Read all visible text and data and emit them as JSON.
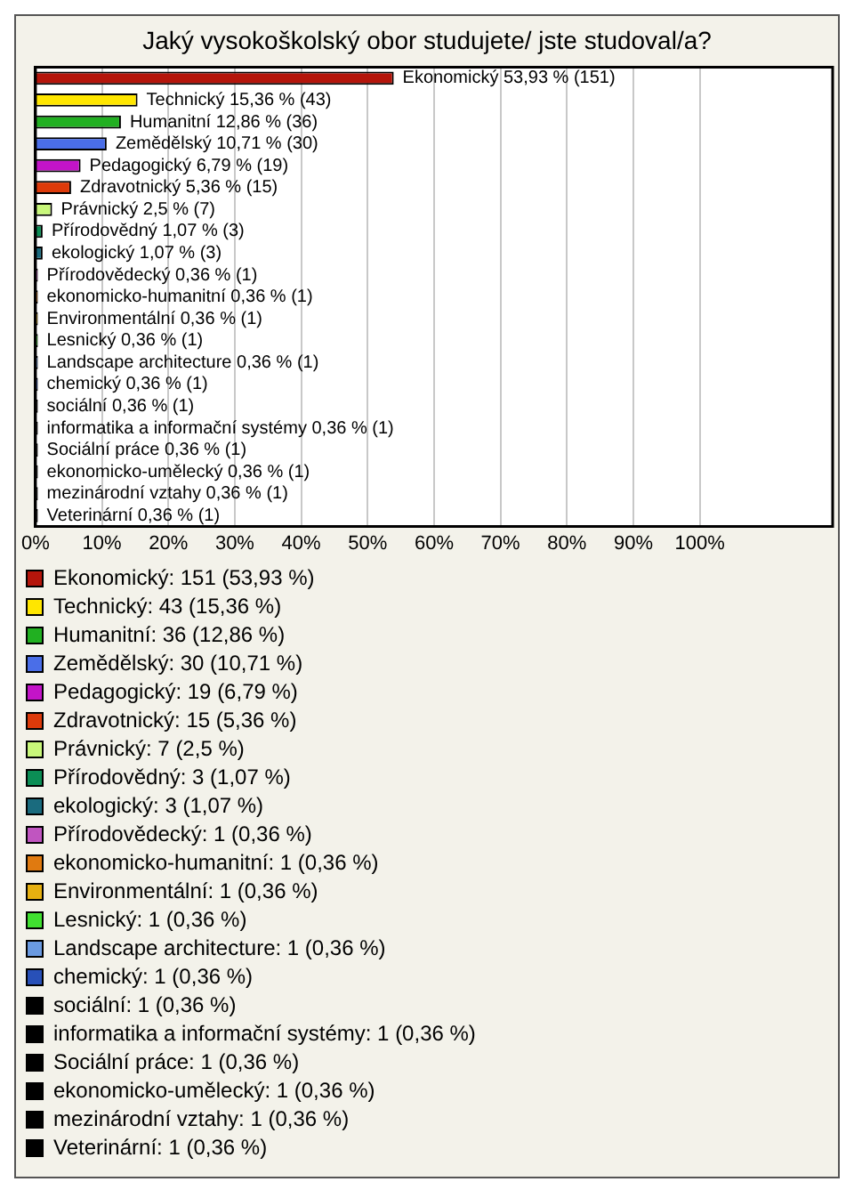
{
  "chart_data": {
    "type": "bar",
    "orientation": "horizontal",
    "stacked": true,
    "title": "Jaký vysokoškolský obor studujete/ jste studoval/a?",
    "categories": [
      null,
      null,
      null,
      null,
      null,
      null,
      null,
      null,
      null,
      null,
      null,
      null,
      null,
      null,
      null,
      null,
      null,
      null,
      null,
      null,
      null
    ],
    "series": [
      {
        "name": "Ekonomický: 151 (53,93 %)",
        "color": "#b5150b",
        "values": [
          53.93,
          null,
          null,
          null,
          null,
          null,
          null,
          null,
          null,
          null,
          null,
          null,
          null,
          null,
          null,
          null,
          null,
          null,
          null,
          null,
          null
        ],
        "value_labels": [
          "Ekonomický 53,93 % (151)",
          null,
          null,
          null,
          null,
          null,
          null,
          null,
          null,
          null,
          null,
          null,
          null,
          null,
          null,
          null,
          null,
          null,
          null,
          null,
          null
        ]
      },
      {
        "name": "Technický: 43 (15,36 %)",
        "color": "#ffe600",
        "values": [
          null,
          15.36,
          null,
          null,
          null,
          null,
          null,
          null,
          null,
          null,
          null,
          null,
          null,
          null,
          null,
          null,
          null,
          null,
          null,
          null,
          null
        ],
        "value_labels": [
          null,
          "Technický 15,36 % (43)",
          null,
          null,
          null,
          null,
          null,
          null,
          null,
          null,
          null,
          null,
          null,
          null,
          null,
          null,
          null,
          null,
          null,
          null,
          null
        ]
      },
      {
        "name": "Humanitní: 36 (12,86 %)",
        "color": "#21b021",
        "values": [
          null,
          null,
          12.86,
          null,
          null,
          null,
          null,
          null,
          null,
          null,
          null,
          null,
          null,
          null,
          null,
          null,
          null,
          null,
          null,
          null,
          null
        ],
        "value_labels": [
          null,
          null,
          "Humanitní 12,86 % (36)",
          null,
          null,
          null,
          null,
          null,
          null,
          null,
          null,
          null,
          null,
          null,
          null,
          null,
          null,
          null,
          null,
          null,
          null
        ]
      },
      {
        "name": "Zemědělský: 30 (10,71 %)",
        "color": "#4a6ee8",
        "values": [
          null,
          null,
          null,
          10.71,
          null,
          null,
          null,
          null,
          null,
          null,
          null,
          null,
          null,
          null,
          null,
          null,
          null,
          null,
          null,
          null,
          null
        ],
        "value_labels": [
          null,
          null,
          null,
          "Zemědělský 10,71 % (30)",
          null,
          null,
          null,
          null,
          null,
          null,
          null,
          null,
          null,
          null,
          null,
          null,
          null,
          null,
          null,
          null,
          null
        ]
      },
      {
        "name": "Pedagogický: 19 (6,79 %)",
        "color": "#c314c8",
        "values": [
          null,
          null,
          null,
          null,
          6.79,
          null,
          null,
          null,
          null,
          null,
          null,
          null,
          null,
          null,
          null,
          null,
          null,
          null,
          null,
          null,
          null
        ],
        "value_labels": [
          null,
          null,
          null,
          null,
          "Pedagogický 6,79 % (19)",
          null,
          null,
          null,
          null,
          null,
          null,
          null,
          null,
          null,
          null,
          null,
          null,
          null,
          null,
          null,
          null
        ]
      },
      {
        "name": "Zdravotnický: 15 (5,36 %)",
        "color": "#dd3a0a",
        "values": [
          null,
          null,
          null,
          null,
          null,
          5.36,
          null,
          null,
          null,
          null,
          null,
          null,
          null,
          null,
          null,
          null,
          null,
          null,
          null,
          null,
          null
        ],
        "value_labels": [
          null,
          null,
          null,
          null,
          null,
          "Zdravotnický 5,36 % (15)",
          null,
          null,
          null,
          null,
          null,
          null,
          null,
          null,
          null,
          null,
          null,
          null,
          null,
          null,
          null
        ]
      },
      {
        "name": "Právnický: 7 (2,5 %)",
        "color": "#c8f77a",
        "values": [
          null,
          null,
          null,
          null,
          null,
          null,
          2.5,
          null,
          null,
          null,
          null,
          null,
          null,
          null,
          null,
          null,
          null,
          null,
          null,
          null,
          null
        ],
        "value_labels": [
          null,
          null,
          null,
          null,
          null,
          null,
          "Právnický 2,5 % (7)",
          null,
          null,
          null,
          null,
          null,
          null,
          null,
          null,
          null,
          null,
          null,
          null,
          null,
          null
        ]
      },
      {
        "name": "Přírodovědný: 3 (1,07 %)",
        "color": "#0b8e55",
        "values": [
          null,
          null,
          null,
          null,
          null,
          null,
          null,
          1.07,
          null,
          null,
          null,
          null,
          null,
          null,
          null,
          null,
          null,
          null,
          null,
          null,
          null
        ],
        "value_labels": [
          null,
          null,
          null,
          null,
          null,
          null,
          null,
          "Přírodovědný 1,07 % (3)",
          null,
          null,
          null,
          null,
          null,
          null,
          null,
          null,
          null,
          null,
          null,
          null,
          null
        ]
      },
      {
        "name": "ekologický: 3 (1,07 %)",
        "color": "#1a6b7e",
        "values": [
          null,
          null,
          null,
          null,
          null,
          null,
          null,
          null,
          1.07,
          null,
          null,
          null,
          null,
          null,
          null,
          null,
          null,
          null,
          null,
          null,
          null
        ],
        "value_labels": [
          null,
          null,
          null,
          null,
          null,
          null,
          null,
          null,
          "ekologický 1,07 % (3)",
          null,
          null,
          null,
          null,
          null,
          null,
          null,
          null,
          null,
          null,
          null,
          null
        ]
      },
      {
        "name": "Přírodovědecký: 1 (0,36 %)",
        "color": "#c055c0",
        "values": [
          null,
          null,
          null,
          null,
          null,
          null,
          null,
          null,
          null,
          0.36,
          null,
          null,
          null,
          null,
          null,
          null,
          null,
          null,
          null,
          null,
          null
        ],
        "value_labels": [
          null,
          null,
          null,
          null,
          null,
          null,
          null,
          null,
          null,
          "Přírodovědecký 0,36 % (1)",
          null,
          null,
          null,
          null,
          null,
          null,
          null,
          null,
          null,
          null,
          null
        ]
      },
      {
        "name": "ekonomicko-humanitní: 1 (0,36 %)",
        "color": "#e07a10",
        "values": [
          null,
          null,
          null,
          null,
          null,
          null,
          null,
          null,
          null,
          null,
          0.36,
          null,
          null,
          null,
          null,
          null,
          null,
          null,
          null,
          null,
          null
        ],
        "value_labels": [
          null,
          null,
          null,
          null,
          null,
          null,
          null,
          null,
          null,
          null,
          "ekonomicko-humanitní 0,36 % (1)",
          null,
          null,
          null,
          null,
          null,
          null,
          null,
          null,
          null,
          null
        ]
      },
      {
        "name": "Environmentální: 1 (0,36 %)",
        "color": "#e6b010",
        "values": [
          null,
          null,
          null,
          null,
          null,
          null,
          null,
          null,
          null,
          null,
          null,
          0.36,
          null,
          null,
          null,
          null,
          null,
          null,
          null,
          null,
          null
        ],
        "value_labels": [
          null,
          null,
          null,
          null,
          null,
          null,
          null,
          null,
          null,
          null,
          null,
          "Environmentální 0,36 % (1)",
          null,
          null,
          null,
          null,
          null,
          null,
          null,
          null,
          null
        ]
      },
      {
        "name": "Lesnický: 1 (0,36 %)",
        "color": "#40e030",
        "values": [
          null,
          null,
          null,
          null,
          null,
          null,
          null,
          null,
          null,
          null,
          null,
          null,
          0.36,
          null,
          null,
          null,
          null,
          null,
          null,
          null,
          null
        ],
        "value_labels": [
          null,
          null,
          null,
          null,
          null,
          null,
          null,
          null,
          null,
          null,
          null,
          null,
          "Lesnický 0,36 % (1)",
          null,
          null,
          null,
          null,
          null,
          null,
          null,
          null
        ]
      },
      {
        "name": "Landscape architecture: 1 (0,36 %)",
        "color": "#6a9ae0",
        "values": [
          null,
          null,
          null,
          null,
          null,
          null,
          null,
          null,
          null,
          null,
          null,
          null,
          null,
          0.36,
          null,
          null,
          null,
          null,
          null,
          null,
          null
        ],
        "value_labels": [
          null,
          null,
          null,
          null,
          null,
          null,
          null,
          null,
          null,
          null,
          null,
          null,
          null,
          "Landscape architecture 0,36 % (1)",
          null,
          null,
          null,
          null,
          null,
          null,
          null
        ]
      },
      {
        "name": "chemický: 1 (0,36 %)",
        "color": "#2850b8",
        "values": [
          null,
          null,
          null,
          null,
          null,
          null,
          null,
          null,
          null,
          null,
          null,
          null,
          null,
          null,
          0.36,
          null,
          null,
          null,
          null,
          null,
          null
        ],
        "value_labels": [
          null,
          null,
          null,
          null,
          null,
          null,
          null,
          null,
          null,
          null,
          null,
          null,
          null,
          null,
          "chemický 0,36 % (1)",
          null,
          null,
          null,
          null,
          null,
          null
        ]
      },
      {
        "name": "sociální: 1 (0,36 %)",
        "color": "#000000",
        "values": [
          null,
          null,
          null,
          null,
          null,
          null,
          null,
          null,
          null,
          null,
          null,
          null,
          null,
          null,
          null,
          0.36,
          null,
          null,
          null,
          null,
          null
        ],
        "value_labels": [
          null,
          null,
          null,
          null,
          null,
          null,
          null,
          null,
          null,
          null,
          null,
          null,
          null,
          null,
          null,
          "sociální 0,36 % (1)",
          null,
          null,
          null,
          null,
          null
        ]
      },
      {
        "name": "informatika a informační systémy: 1 (0,36 %)",
        "color": "#000000",
        "values": [
          null,
          null,
          null,
          null,
          null,
          null,
          null,
          null,
          null,
          null,
          null,
          null,
          null,
          null,
          null,
          null,
          0.36,
          null,
          null,
          null,
          null
        ],
        "value_labels": [
          null,
          null,
          null,
          null,
          null,
          null,
          null,
          null,
          null,
          null,
          null,
          null,
          null,
          null,
          null,
          null,
          "informatika a informační systémy 0,36 % (1)",
          null,
          null,
          null,
          null
        ]
      },
      {
        "name": "Sociální práce: 1 (0,36 %)",
        "color": "#000000",
        "values": [
          null,
          null,
          null,
          null,
          null,
          null,
          null,
          null,
          null,
          null,
          null,
          null,
          null,
          null,
          null,
          null,
          null,
          0.36,
          null,
          null,
          null
        ],
        "value_labels": [
          null,
          null,
          null,
          null,
          null,
          null,
          null,
          null,
          null,
          null,
          null,
          null,
          null,
          null,
          null,
          null,
          null,
          "Sociální práce 0,36 % (1)",
          null,
          null,
          null
        ]
      },
      {
        "name": "ekonomicko-umělecký: 1 (0,36 %)",
        "color": "#000000",
        "values": [
          null,
          null,
          null,
          null,
          null,
          null,
          null,
          null,
          null,
          null,
          null,
          null,
          null,
          null,
          null,
          null,
          null,
          null,
          0.36,
          null,
          null
        ],
        "value_labels": [
          null,
          null,
          null,
          null,
          null,
          null,
          null,
          null,
          null,
          null,
          null,
          null,
          null,
          null,
          null,
          null,
          null,
          null,
          "ekonomicko-umělecký 0,36 % (1)",
          null,
          null
        ]
      },
      {
        "name": "mezinárodní vztahy: 1 (0,36 %)",
        "color": "#000000",
        "values": [
          null,
          null,
          null,
          null,
          null,
          null,
          null,
          null,
          null,
          null,
          null,
          null,
          null,
          null,
          null,
          null,
          null,
          null,
          null,
          0.36,
          null
        ],
        "value_labels": [
          null,
          null,
          null,
          null,
          null,
          null,
          null,
          null,
          null,
          null,
          null,
          null,
          null,
          null,
          null,
          null,
          null,
          null,
          null,
          "mezinárodní vztahy 0,36 % (1)",
          null
        ]
      },
      {
        "name": "Veterinární: 1 (0,36 %)",
        "color": "#000000",
        "values": [
          null,
          null,
          null,
          null,
          null,
          null,
          null,
          null,
          null,
          null,
          null,
          null,
          null,
          null,
          null,
          null,
          null,
          null,
          null,
          null,
          0.36
        ],
        "value_labels": [
          null,
          null,
          null,
          null,
          null,
          null,
          null,
          null,
          null,
          null,
          null,
          null,
          null,
          null,
          null,
          null,
          null,
          null,
          null,
          null,
          "Veterinární 0,36 % (1)"
        ]
      }
    ],
    "xlim": [
      0,
      120
    ],
    "xticks": [
      {
        "value": 0,
        "label": "0%"
      },
      {
        "value": 10,
        "label": "10%"
      },
      {
        "value": 20,
        "label": "20%"
      },
      {
        "value": 30,
        "label": "30%"
      },
      {
        "value": 40,
        "label": "40%"
      },
      {
        "value": 50,
        "label": "50%"
      },
      {
        "value": 60,
        "label": "60%"
      },
      {
        "value": 70,
        "label": "70%"
      },
      {
        "value": 80,
        "label": "80%"
      },
      {
        "value": 90,
        "label": "90%"
      },
      {
        "value": 100,
        "label": "100%"
      },
      {
        "value": 120,
        "label": null
      }
    ],
    "grid": "x",
    "legend": "bottom",
    "tick_labels": "x"
  }
}
